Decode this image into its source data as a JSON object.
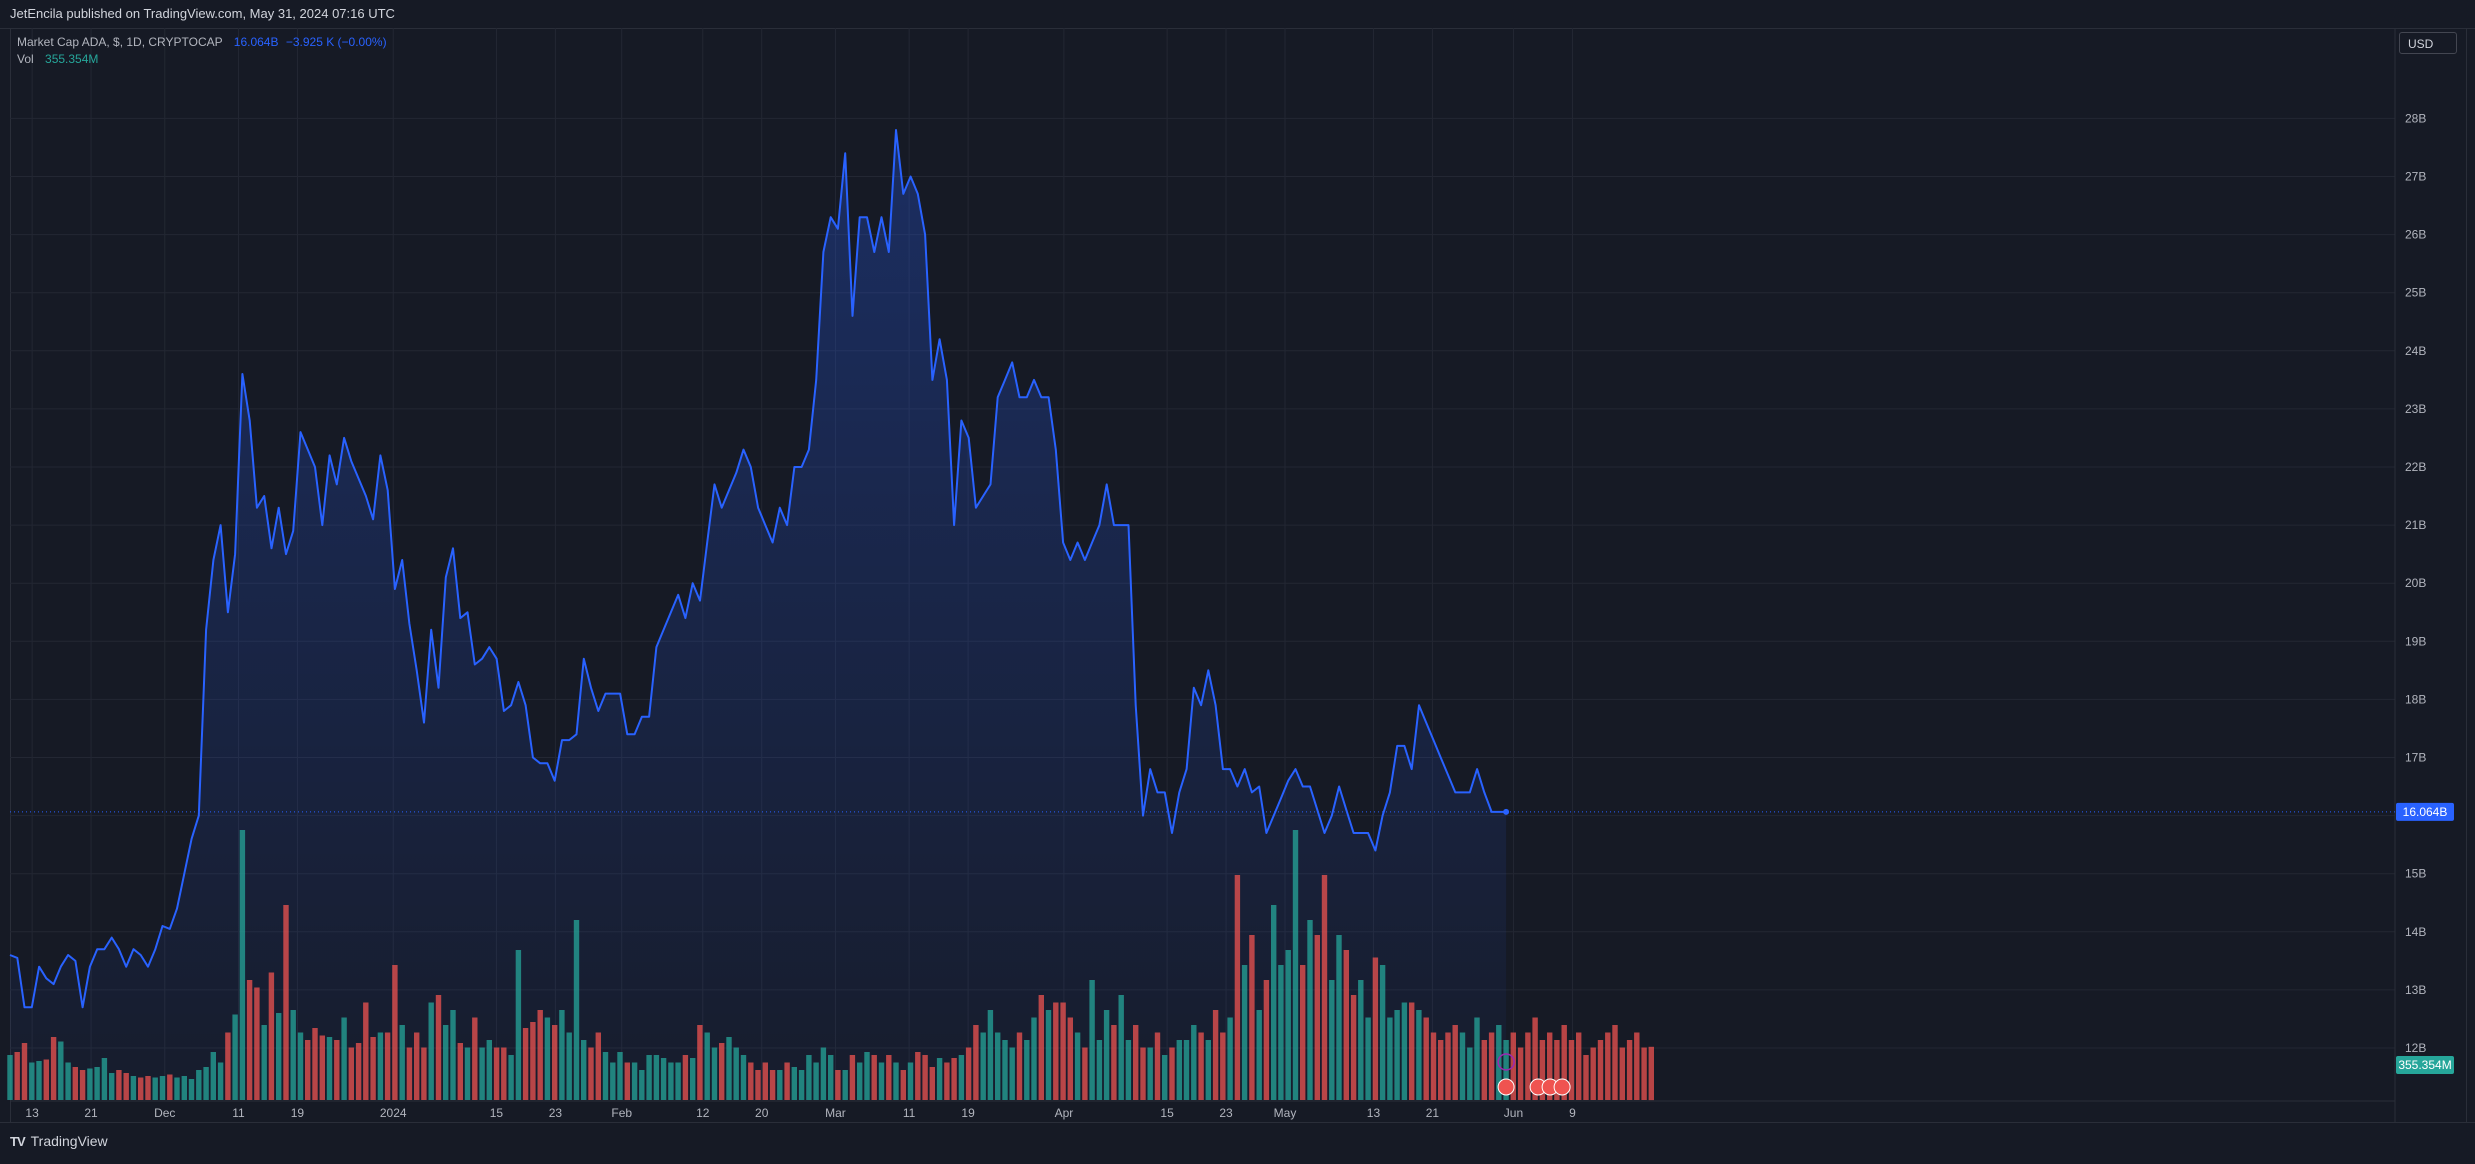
{
  "header": {
    "publisher_line": "JetEncila published on TradingView.com, May 31, 2024 07:16 UTC"
  },
  "legend": {
    "symbol": "Market Cap ADA, $, 1D, CRYPTOCAP",
    "last_value": "16.064B",
    "change": "−3.925 K (−0.00%)",
    "vol_label": "Vol",
    "vol_value": "355.354M"
  },
  "currency_button": "USD",
  "footer": {
    "brand": "TradingView"
  },
  "colors": {
    "line": "#2962ff",
    "up": "#26a69a",
    "down": "#ef5350",
    "grid": "#232733",
    "bg": "#161a25"
  },
  "chart_data": {
    "type": "area",
    "title": "Market Cap ADA, $, 1D, CRYPTOCAP",
    "ylabel": "USD",
    "ylim": [
      11.5,
      28.7
    ],
    "y_ticks": [
      "12B",
      "13B",
      "14B",
      "15B",
      "16B",
      "17B",
      "18B",
      "19B",
      "20B",
      "21B",
      "22B",
      "23B",
      "24B",
      "25B",
      "26B",
      "27B",
      "28B"
    ],
    "x_ticks": [
      "13",
      "21",
      "Dec",
      "11",
      "19",
      "2024",
      "15",
      "23",
      "Feb",
      "12",
      "20",
      "Mar",
      "11",
      "19",
      "Apr",
      "15",
      "23",
      "May",
      "13",
      "21",
      "Jun",
      "9"
    ],
    "x_ticks_date": [
      "2023-11-13",
      "2023-11-21",
      "2023-12-01",
      "2023-12-11",
      "2023-12-19",
      "2024-01-01",
      "2024-01-15",
      "2024-01-23",
      "2024-02-01",
      "2024-02-12",
      "2024-02-20",
      "2024-03-01",
      "2024-03-11",
      "2024-03-19",
      "2024-04-01",
      "2024-04-15",
      "2024-04-23",
      "2024-05-01",
      "2024-05-13",
      "2024-05-21",
      "2024-06-01",
      "2024-06-09"
    ],
    "last_price_label": "16.064B",
    "last_volume_label": "355.354M",
    "start_date": "2023-11-10",
    "end_date": "2024-05-31",
    "series": [
      {
        "name": "Market Cap ADA",
        "values": [
          13.6,
          13.55,
          12.7,
          12.7,
          13.4,
          13.2,
          13.1,
          13.4,
          13.6,
          13.5,
          12.7,
          13.4,
          13.7,
          13.7,
          13.9,
          13.7,
          13.4,
          13.7,
          13.6,
          13.4,
          13.7,
          14.1,
          14.05,
          14.4,
          15.0,
          15.6,
          16.0,
          19.2,
          20.4,
          21.0,
          19.5,
          20.5,
          23.6,
          22.8,
          21.3,
          21.5,
          20.6,
          21.3,
          20.5,
          20.9,
          22.6,
          22.3,
          22.0,
          21.0,
          22.2,
          21.7,
          22.5,
          22.1,
          21.8,
          21.5,
          21.1,
          22.2,
          21.6,
          19.9,
          20.4,
          19.3,
          18.5,
          17.6,
          19.2,
          18.2,
          20.1,
          20.6,
          19.4,
          19.5,
          18.6,
          18.7,
          18.9,
          18.7,
          17.8,
          17.9,
          18.3,
          17.9,
          17.0,
          16.9,
          16.9,
          16.6,
          17.3,
          17.3,
          17.4,
          18.7,
          18.2,
          17.8,
          18.1,
          18.1,
          18.1,
          17.4,
          17.4,
          17.7,
          17.7,
          18.9,
          19.2,
          19.5,
          19.8,
          19.4,
          20.0,
          19.7,
          20.7,
          21.7,
          21.3,
          21.6,
          21.9,
          22.3,
          22.0,
          21.3,
          21.0,
          20.7,
          21.3,
          21.0,
          22.0,
          22.0,
          22.3,
          23.5,
          25.7,
          26.3,
          26.1,
          27.4,
          24.6,
          26.3,
          26.3,
          25.7,
          26.3,
          25.7,
          27.8,
          26.7,
          27.0,
          26.7,
          26.0,
          23.5,
          24.2,
          23.5,
          21.0,
          22.8,
          22.5,
          21.3,
          21.5,
          21.7,
          23.2,
          23.5,
          23.8,
          23.2,
          23.2,
          23.5,
          23.2,
          23.2,
          22.3,
          20.7,
          20.4,
          20.7,
          20.4,
          20.7,
          21.0,
          21.7,
          21.0,
          21.0,
          21.0,
          17.9,
          16.0,
          16.8,
          16.4,
          16.4,
          15.7,
          16.4,
          16.8,
          18.2,
          17.9,
          18.5,
          17.9,
          16.8,
          16.8,
          16.5,
          16.8,
          16.4,
          16.5,
          15.7,
          16.0,
          16.3,
          16.6,
          16.8,
          16.5,
          16.5,
          16.1,
          15.7,
          16.0,
          16.5,
          16.1,
          15.7,
          15.7,
          15.7,
          15.4,
          16.0,
          16.4,
          17.2,
          17.2,
          16.8,
          17.9,
          17.6,
          17.3,
          17.0,
          16.7,
          16.4,
          16.4,
          16.4,
          16.8,
          16.4,
          16.064,
          16.064,
          16.064
        ]
      },
      {
        "name": "Vol",
        "values": [
          0.3,
          0.32,
          0.38,
          0.25,
          0.26,
          0.27,
          0.42,
          0.39,
          0.25,
          0.22,
          0.2,
          0.21,
          0.22,
          0.28,
          0.18,
          0.2,
          0.18,
          0.16,
          0.15,
          0.16,
          0.15,
          0.16,
          0.17,
          0.15,
          0.16,
          0.14,
          0.2,
          0.22,
          0.32,
          0.25,
          0.45,
          0.57,
          1.8,
          0.8,
          0.75,
          0.5,
          0.85,
          0.58,
          1.3,
          0.6,
          0.45,
          0.4,
          0.48,
          0.43,
          0.42,
          0.4,
          0.55,
          0.35,
          0.38,
          0.65,
          0.42,
          0.45,
          0.45,
          0.9,
          0.5,
          0.35,
          0.45,
          0.35,
          0.65,
          0.7,
          0.5,
          0.6,
          0.38,
          0.35,
          0.55,
          0.35,
          0.4,
          0.35,
          0.35,
          0.3,
          1.0,
          0.48,
          0.52,
          0.6,
          0.55,
          0.5,
          0.6,
          0.45,
          1.2,
          0.4,
          0.35,
          0.45,
          0.32,
          0.25,
          0.32,
          0.25,
          0.25,
          0.2,
          0.3,
          0.3,
          0.28,
          0.25,
          0.25,
          0.3,
          0.28,
          0.5,
          0.45,
          0.35,
          0.38,
          0.42,
          0.35,
          0.3,
          0.25,
          0.2,
          0.25,
          0.2,
          0.2,
          0.25,
          0.22,
          0.2,
          0.3,
          0.25,
          0.35,
          0.3,
          0.2,
          0.2,
          0.3,
          0.25,
          0.32,
          0.3,
          0.25,
          0.3,
          0.25,
          0.2,
          0.25,
          0.32,
          0.3,
          0.22,
          0.28,
          0.25,
          0.28,
          0.3,
          0.35,
          0.5,
          0.45,
          0.6,
          0.45,
          0.4,
          0.35,
          0.45,
          0.4,
          0.55,
          0.7,
          0.6,
          0.65,
          0.65,
          0.55,
          0.45,
          0.35,
          0.8,
          0.4,
          0.6,
          0.5,
          0.7,
          0.4,
          0.5,
          0.35,
          0.35,
          0.45,
          0.3,
          0.35,
          0.4,
          0.4,
          0.5,
          0.45,
          0.4,
          0.6,
          0.45,
          0.55,
          1.5,
          0.9,
          1.1,
          0.6,
          0.8,
          1.3,
          0.9,
          1.0,
          1.8,
          0.9,
          1.2,
          1.1,
          1.5,
          0.8,
          1.1,
          1.0,
          0.7,
          0.8,
          0.55,
          0.95,
          0.9,
          0.55,
          0.6,
          0.65,
          0.65,
          0.6,
          0.55,
          0.45,
          0.4,
          0.45,
          0.5,
          0.45,
          0.35,
          0.55,
          0.4,
          0.45,
          0.5,
          0.4,
          0.45,
          0.35,
          0.45,
          0.55,
          0.4,
          0.45,
          0.4,
          0.5,
          0.4,
          0.45,
          0.3,
          0.35,
          0.4,
          0.45,
          0.5,
          0.35,
          0.4,
          0.45,
          0.35,
          0.355
        ]
      }
    ]
  }
}
